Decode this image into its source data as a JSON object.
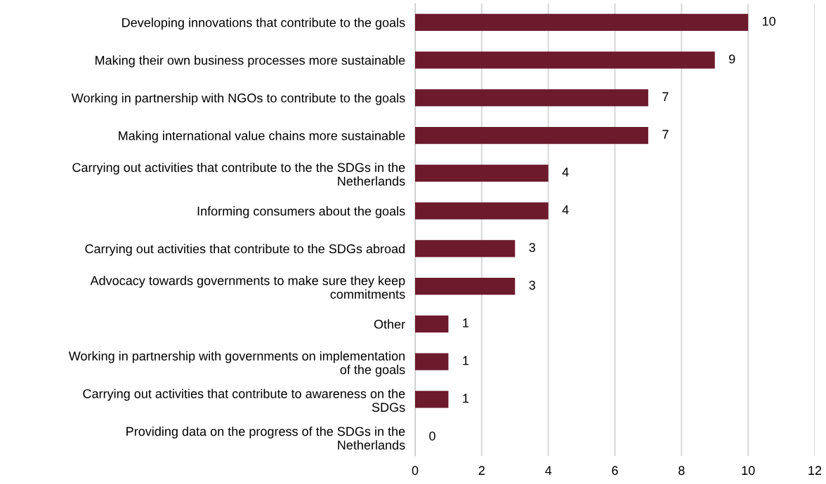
{
  "chart_data": {
    "type": "bar",
    "orientation": "horizontal",
    "categories": [
      "Developing innovations that contribute to the goals",
      "Making their own business processes more sustainable",
      "Working in partnership with NGOs to contribute to the goals",
      "Making international value chains more sustainable",
      "Carrying out activities that contribute to the the SDGs in the\nNetherlands",
      "Informing consumers about the goals",
      "Carrying out activities that contribute to the SDGs abroad",
      "Advocacy towards governments to make sure they keep\ncommitments",
      "Other",
      "Working in partnership with governments on implementation\nof the goals",
      "Carrying out activities that contribute to awareness on the\nSDGs",
      "Providing data on the progress of the SDGs in the\nNetherlands"
    ],
    "values": [
      10,
      9,
      7,
      7,
      4,
      4,
      3,
      3,
      1,
      1,
      1,
      0
    ],
    "color": "#6d1a2d",
    "xlim": [
      0,
      12
    ],
    "xticks": [
      0,
      2,
      4,
      6,
      8,
      10,
      12
    ],
    "grid": "x",
    "data_labels": true
  }
}
